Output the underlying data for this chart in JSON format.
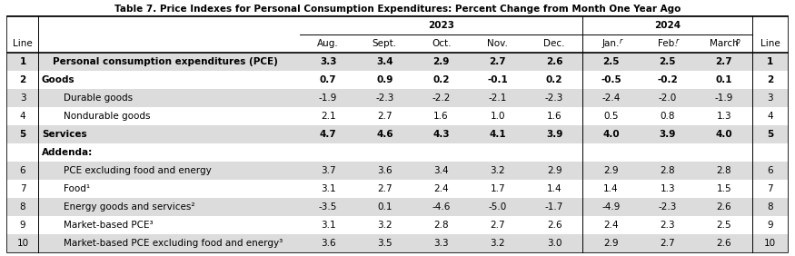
{
  "title": "Table 7. Price Indexes for Personal Consumption Expenditures: Percent Change from Month One Year Ago",
  "rows": [
    {
      "line": "1",
      "label": "Personal consumption expenditures (PCE)",
      "values": [
        "3.3",
        "3.4",
        "2.9",
        "2.7",
        "2.6",
        "2.5",
        "2.5",
        "2.7"
      ],
      "bold": true,
      "shaded": true,
      "indent": 1
    },
    {
      "line": "2",
      "label": "Goods",
      "values": [
        "0.7",
        "0.9",
        "0.2",
        "-0.1",
        "0.2",
        "-0.5",
        "-0.2",
        "0.1"
      ],
      "bold": true,
      "shaded": false,
      "indent": 0
    },
    {
      "line": "3",
      "label": "Durable goods",
      "values": [
        "-1.9",
        "-2.3",
        "-2.2",
        "-2.1",
        "-2.3",
        "-2.4",
        "-2.0",
        "-1.9"
      ],
      "bold": false,
      "shaded": true,
      "indent": 2
    },
    {
      "line": "4",
      "label": "Nondurable goods",
      "values": [
        "2.1",
        "2.7",
        "1.6",
        "1.0",
        "1.6",
        "0.5",
        "0.8",
        "1.3"
      ],
      "bold": false,
      "shaded": false,
      "indent": 2
    },
    {
      "line": "5",
      "label": "Services",
      "values": [
        "4.7",
        "4.6",
        "4.3",
        "4.1",
        "3.9",
        "4.0",
        "3.9",
        "4.0"
      ],
      "bold": true,
      "shaded": true,
      "indent": 0
    },
    {
      "line": "",
      "label": "Addenda:",
      "values": [
        "",
        "",
        "",
        "",
        "",
        "",
        "",
        ""
      ],
      "bold": true,
      "shaded": false,
      "indent": 0,
      "addenda": true
    },
    {
      "line": "6",
      "label": "PCE excluding food and energy",
      "values": [
        "3.7",
        "3.6",
        "3.4",
        "3.2",
        "2.9",
        "2.9",
        "2.8",
        "2.8"
      ],
      "bold": false,
      "shaded": true,
      "indent": 2
    },
    {
      "line": "7",
      "label": "Food¹",
      "values": [
        "3.1",
        "2.7",
        "2.4",
        "1.7",
        "1.4",
        "1.4",
        "1.3",
        "1.5"
      ],
      "bold": false,
      "shaded": false,
      "indent": 2
    },
    {
      "line": "8",
      "label": "Energy goods and services²",
      "values": [
        "-3.5",
        "0.1",
        "-4.6",
        "-5.0",
        "-1.7",
        "-4.9",
        "-2.3",
        "2.6"
      ],
      "bold": false,
      "shaded": true,
      "indent": 2
    },
    {
      "line": "9",
      "label": "Market-based PCE³",
      "values": [
        "3.1",
        "3.2",
        "2.8",
        "2.7",
        "2.6",
        "2.4",
        "2.3",
        "2.5"
      ],
      "bold": false,
      "shaded": false,
      "indent": 2
    },
    {
      "line": "10",
      "label": "Market-based PCE excluding food and energy³",
      "values": [
        "3.6",
        "3.5",
        "3.3",
        "3.2",
        "3.0",
        "2.9",
        "2.7",
        "2.6"
      ],
      "bold": false,
      "shaded": true,
      "indent": 2
    }
  ],
  "col_headers": [
    "Aug.",
    "Sept.",
    "Oct.",
    "Nov.",
    "Dec.",
    "Jan. r",
    "Feb. r",
    "March p"
  ],
  "year_2023_cols": [
    0,
    4
  ],
  "year_2024_cols": [
    5,
    7
  ],
  "bg_color": "#ffffff",
  "shaded_color": "#dcdcdc",
  "title_fontsize": 7.5,
  "data_fontsize": 7.5,
  "header_fontsize": 7.5
}
